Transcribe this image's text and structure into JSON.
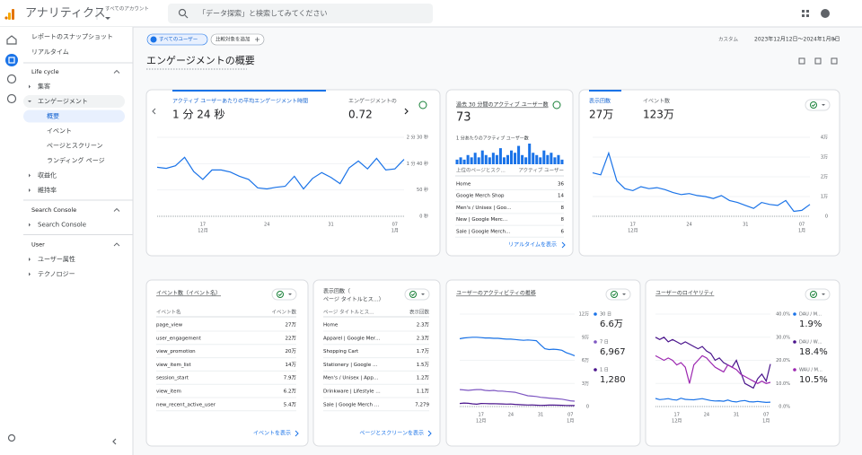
{
  "header": {
    "app_name": "アナリティクス",
    "account_label": "すべてのアカウント",
    "search_placeholder": "「データ探索」と検索してみてください"
  },
  "sidebar": {
    "links": [
      "レポートのスナップショット",
      "リアルタイム"
    ],
    "sections": [
      {
        "title": "Life cycle",
        "items": [
          {
            "label": "集客"
          },
          {
            "label": "エンゲージメント",
            "children": [
              "概要",
              "イベント",
              "ページとスクリーン",
              "ランディング ページ"
            ]
          },
          {
            "label": "収益化"
          },
          {
            "label": "維持率"
          }
        ]
      },
      {
        "title": "Search Console",
        "items": [
          {
            "label": "Search Console"
          }
        ]
      },
      {
        "title": "User",
        "items": [
          {
            "label": "ユーザー属性"
          },
          {
            "label": "テクノロジー"
          }
        ]
      }
    ]
  },
  "toolbar": {
    "segment": "すべてのユーザー",
    "compare": "比較対象を追加",
    "date_label": "カスタム",
    "date_range": "2023年12月12日～2024年1月8日"
  },
  "page_title": "エンゲージメントの概要",
  "cards": {
    "engagement": {
      "metrics": [
        {
          "label": "アクティブ ユーザーあたりの平均エンゲージメント時間",
          "value": "1 分 24 秒"
        },
        {
          "label": "エンゲージメントの",
          "value": "0.72"
        }
      ]
    },
    "realtime": {
      "title": "過去 30 分間のアクティブ ユーザー数",
      "value": "73",
      "subtitle": "1 分あたりのアクティブ ユーザー数",
      "columns": [
        "上位のページとスク…",
        "アクティブ ユーザー"
      ],
      "rows": [
        [
          "Home",
          "36"
        ],
        [
          "Google Merch Shop",
          "14"
        ],
        [
          "Men's / Unisex | Goo…",
          "8"
        ],
        [
          "New | Google Merc…",
          "8"
        ],
        [
          "Sale | Google Merch…",
          "6"
        ]
      ],
      "link": "リアルタイムを表示"
    },
    "views": {
      "metrics": [
        {
          "label": "表示回数",
          "value": "27万"
        },
        {
          "label": "イベント数",
          "value": "123万"
        }
      ]
    },
    "events": {
      "title": "イベント数（イベント名）",
      "columns": [
        "イベント名",
        "イベント数"
      ],
      "rows": [
        [
          "page_view",
          "27万"
        ],
        [
          "user_engagement",
          "22万"
        ],
        [
          "view_promotion",
          "20万"
        ],
        [
          "view_item_list",
          "14万"
        ],
        [
          "session_start",
          "7.9万"
        ],
        [
          "view_item",
          "6.2万"
        ],
        [
          "new_recent_active_user",
          "5.4万"
        ]
      ],
      "link": "イベントを表示"
    },
    "pages": {
      "title": [
        "表示回数（",
        "ページ タイトルとス…）"
      ],
      "columns": [
        "ページ タイトルとス…",
        "表示回数"
      ],
      "rows": [
        [
          "Home",
          "2.3万"
        ],
        [
          "Apparel | Google Mer…",
          "2.3万"
        ],
        [
          "Shopping Cart",
          "1.7万"
        ],
        [
          "Stationery | Google …",
          "1.5万"
        ],
        [
          "Men's / Unisex | App…",
          "1.2万"
        ],
        [
          "Drinkware | Lifestyle …",
          "1.1万"
        ],
        [
          "Sale | Google Merch …",
          "7,279"
        ]
      ],
      "link": "ページとスクリーンを表示"
    },
    "activity": {
      "title": "ユーザーのアクティビティの推移"
    },
    "loyalty": {
      "title": "ユーザーのロイヤリティ"
    }
  },
  "chart_data": [
    {
      "type": "line",
      "categories": [
        null,
        null,
        null,
        null,
        null,
        "17",
        null,
        null,
        null,
        null,
        null,
        null,
        "24",
        null,
        null,
        null,
        null,
        null,
        null,
        "31",
        null,
        null,
        null,
        null,
        null,
        null,
        "07",
        null
      ],
      "month_labels": [
        {
          "index": 5,
          "label": "12月"
        },
        {
          "index": 26,
          "label": "1月"
        }
      ],
      "ylim": [
        0,
        150
      ],
      "yticks": [
        {
          "value": 0,
          "label": "0 秒"
        },
        {
          "value": 50,
          "label": "50 秒"
        },
        {
          "value": 100,
          "label": "1 分 40 秒"
        },
        {
          "value": 150,
          "label": "2 分 30 秒"
        }
      ],
      "grid": true,
      "series": [
        {
          "color": "#1a73e8",
          "values": [
            93,
            91,
            96,
            112,
            85,
            70,
            88,
            88,
            84,
            76,
            70,
            54,
            52,
            55,
            57,
            76,
            52,
            72,
            83,
            74,
            62,
            92,
            105,
            90,
            110,
            88,
            90,
            108
          ]
        }
      ]
    },
    {
      "type": "bar",
      "color": "#1a73e8",
      "values": [
        2,
        3,
        2,
        4,
        3,
        5,
        3,
        6,
        4,
        3,
        5,
        4,
        7,
        3,
        4,
        6,
        5,
        8,
        4,
        3,
        9,
        5,
        4,
        3,
        6,
        4,
        5,
        3,
        4,
        2
      ]
    },
    {
      "type": "line",
      "categories": [
        null,
        null,
        null,
        null,
        null,
        "17",
        null,
        null,
        null,
        null,
        null,
        null,
        "24",
        null,
        null,
        null,
        null,
        null,
        null,
        "31",
        null,
        null,
        null,
        null,
        null,
        null,
        "07",
        null
      ],
      "month_labels": [
        {
          "index": 5,
          "label": "12月"
        },
        {
          "index": 26,
          "label": "1月"
        }
      ],
      "ylim": [
        0,
        40000
      ],
      "yticks": [
        0,
        {
          "value": 10000,
          "label": "1万"
        },
        {
          "value": 20000,
          "label": "2万"
        },
        {
          "value": 30000,
          "label": "3万"
        },
        {
          "value": 40000,
          "label": "4万"
        }
      ],
      "grid": true,
      "series": [
        {
          "color": "#1a73e8",
          "values": [
            22000,
            21000,
            32000,
            18000,
            14000,
            13000,
            15000,
            14000,
            14500,
            13500,
            12000,
            11000,
            11500,
            10500,
            10000,
            9000,
            10500,
            8000,
            7000,
            5500,
            4000,
            7000,
            6000,
            5500,
            8000,
            2500,
            3000,
            6000
          ]
        }
      ]
    },
    {
      "type": "line",
      "categories": [
        null,
        null,
        null,
        null,
        null,
        "17",
        null,
        null,
        null,
        null,
        null,
        null,
        "24",
        null,
        null,
        null,
        null,
        null,
        null,
        "31",
        null,
        null,
        null,
        null,
        null,
        null,
        "07",
        null
      ],
      "month_labels": [
        {
          "index": 5,
          "label": "12月"
        },
        {
          "index": 26,
          "label": "1月"
        }
      ],
      "ylim": [
        0,
        120000
      ],
      "yticks": [
        0,
        {
          "value": 30000,
          "label": "3万"
        },
        {
          "value": 60000,
          "label": "6万"
        },
        {
          "value": 90000,
          "label": "9万"
        },
        {
          "value": 120000,
          "label": "12万"
        }
      ],
      "grid": true,
      "series": [
        {
          "name": "30 日",
          "total_label": "6.6万",
          "color": "#1a73e8",
          "values": [
            88000,
            89000,
            89500,
            90000,
            90000,
            89500,
            89000,
            89000,
            88500,
            88500,
            88000,
            87500,
            87500,
            87000,
            86500,
            86000,
            86500,
            86000,
            85500,
            80000,
            75000,
            74000,
            74500,
            74000,
            73000,
            70000,
            68000,
            66000
          ]
        },
        {
          "name": "7 日",
          "total_label": "6,967",
          "color": "#7e57c2",
          "values": [
            22000,
            21500,
            21000,
            21500,
            22000,
            22000,
            21000,
            20500,
            21000,
            20000,
            20000,
            19500,
            19000,
            18500,
            17000,
            15500,
            14000,
            13500,
            13000,
            12000,
            11500,
            11000,
            10500,
            10000,
            9500,
            8500,
            7500,
            6967
          ]
        },
        {
          "name": "1 日",
          "total_label": "1,280",
          "color": "#4a148c",
          "values": [
            4000,
            4500,
            4200,
            3500,
            3000,
            4000,
            3800,
            3600,
            3700,
            3500,
            3400,
            3200,
            3300,
            2800,
            2500,
            2200,
            2000,
            2100,
            1800,
            1500,
            1600,
            1900,
            2000,
            1700,
            1600,
            1400,
            1300,
            1280
          ]
        }
      ]
    },
    {
      "type": "line",
      "categories": [
        null,
        null,
        null,
        null,
        null,
        "17",
        null,
        null,
        null,
        null,
        null,
        null,
        "24",
        null,
        null,
        null,
        null,
        null,
        null,
        "31",
        null,
        null,
        null,
        null,
        null,
        null,
        "07",
        null
      ],
      "month_labels": [
        {
          "index": 5,
          "label": "12月"
        },
        {
          "index": 26,
          "label": "1月"
        }
      ],
      "ylim": [
        0,
        40
      ],
      "yticks": [
        {
          "value": 0,
          "label": "0.0%"
        },
        {
          "value": 10,
          "label": "10.0%"
        },
        {
          "value": 20,
          "label": "20.0%"
        },
        {
          "value": 30,
          "label": "30.0%"
        },
        {
          "value": 40,
          "label": "40.0%"
        }
      ],
      "grid": true,
      "series": [
        {
          "name": "DAU / M…",
          "total_label": "1.9%",
          "color": "#1a73e8",
          "values": [
            3.5,
            3,
            3.2,
            3.4,
            3,
            2.8,
            3.6,
            3.1,
            3,
            2.9,
            3.2,
            3.4,
            3,
            2.6,
            2.4,
            2.5,
            2.3,
            2.8,
            2.2,
            2,
            2.4,
            2.6,
            2.1,
            2,
            2.2,
            2,
            1.8,
            1.9
          ]
        },
        {
          "name": "DAU / W…",
          "total_label": "18.4%",
          "color": "#4a148c",
          "values": [
            30,
            29,
            30,
            28,
            29,
            28,
            27,
            28,
            27,
            26,
            25,
            26,
            24,
            23,
            20,
            21,
            19,
            18,
            17,
            20,
            15,
            10,
            9,
            8,
            12,
            14,
            11,
            18.4
          ]
        },
        {
          "name": "WAU / M…",
          "total_label": "10.5%",
          "color": "#9c27b0",
          "values": [
            22,
            21,
            20,
            21,
            20,
            18,
            19,
            17,
            10,
            18,
            20,
            22,
            21,
            19,
            17,
            16,
            15,
            18,
            17,
            16,
            14,
            13,
            12,
            11,
            10,
            11,
            10,
            10.5
          ]
        }
      ]
    }
  ]
}
